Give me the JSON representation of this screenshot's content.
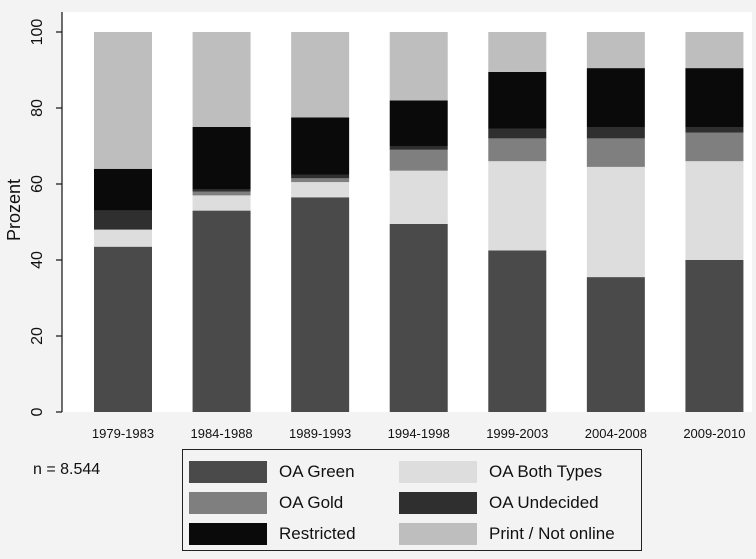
{
  "chart_data": {
    "type": "bar",
    "stacked": true,
    "ylabel": "Prozent",
    "ylim": [
      0,
      100
    ],
    "yticks": [
      0,
      20,
      40,
      60,
      80,
      100
    ],
    "categories": [
      "1979-1983",
      "1984-1988",
      "1989-1993",
      "1994-1998",
      "1999-2003",
      "2004-2008",
      "2009-2010"
    ],
    "series": [
      {
        "name": "OA Green",
        "color": "#4a4a4a",
        "values": [
          43.5,
          53,
          56.5,
          49.5,
          42.5,
          35.5,
          40
        ]
      },
      {
        "name": "OA Both Types",
        "color": "#dddddd",
        "values": [
          4.5,
          4,
          4,
          14,
          23.5,
          29,
          26
        ]
      },
      {
        "name": "OA Gold",
        "color": "#7f7f7f",
        "values": [
          0,
          1,
          1,
          5.5,
          6,
          7.5,
          7.5
        ]
      },
      {
        "name": "OA Undecided",
        "color": "#2f2f2f",
        "values": [
          5,
          0.5,
          1,
          1,
          2.5,
          3,
          1.5
        ]
      },
      {
        "name": "Restricted",
        "color": "#0a0a0a",
        "values": [
          11,
          16.5,
          15,
          12,
          15,
          15.5,
          15.5
        ]
      },
      {
        "name": "Print / Not online",
        "color": "#bebebe",
        "values": [
          36,
          25,
          22.5,
          18,
          10.5,
          9.5,
          9.5
        ]
      }
    ],
    "grid": false,
    "legend_position": "bottom"
  },
  "note": "n = 8.544",
  "legend": [
    {
      "label": "OA Green",
      "color": "#4a4a4a"
    },
    {
      "label": "OA Both Types",
      "color": "#dddddd"
    },
    {
      "label": "OA Gold",
      "color": "#7f7f7f"
    },
    {
      "label": "OA Undecided",
      "color": "#2f2f2f"
    },
    {
      "label": "Restricted",
      "color": "#0a0a0a"
    },
    {
      "label": "Print / Not online",
      "color": "#bebebe"
    }
  ],
  "colors": {
    "plot_bg": "#ffffff",
    "page_bg": "#f3f3f3",
    "axis": "#111111"
  }
}
